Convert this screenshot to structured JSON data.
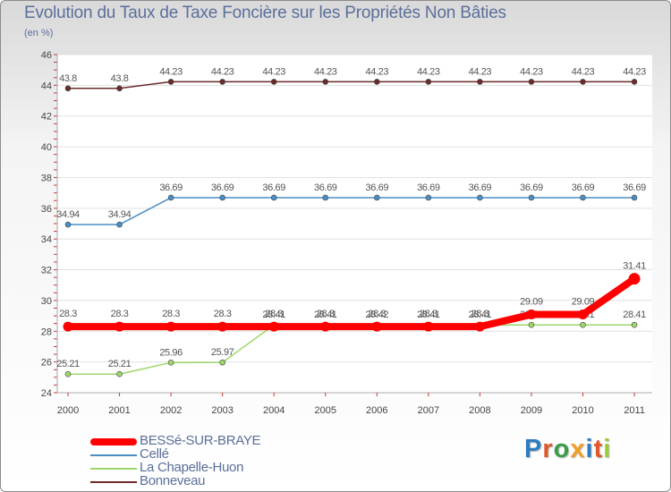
{
  "chart_data": {
    "type": "line",
    "title": "Evolution du Taux de Taxe Foncière sur les Propriétés Non Bâties",
    "unit_label": "(en %)",
    "xlabel": "",
    "ylabel": "",
    "ylim": [
      24,
      46
    ],
    "y_ticks": [
      "24",
      "26",
      "28",
      "30",
      "32",
      "34",
      "36",
      "38",
      "40",
      "42",
      "44",
      "46"
    ],
    "x": [
      "2000",
      "2001",
      "2002",
      "2003",
      "2004",
      "2005",
      "2006",
      "2007",
      "2008",
      "2009",
      "2010",
      "2011"
    ],
    "grid": "horizontal",
    "legend_position": "bottom-left",
    "series": [
      {
        "name": "Bonneveau",
        "color": "#6b2b2b",
        "values": [
          43.8,
          43.8,
          44.23,
          44.23,
          44.23,
          44.23,
          44.23,
          44.23,
          44.23,
          44.23,
          44.23,
          44.23
        ],
        "labels": [
          "43.8",
          "43.8",
          "44.23",
          "44.23",
          "44.23",
          "44.23",
          "44.23",
          "44.23",
          "44.23",
          "44.23",
          "44.23",
          "44.23"
        ]
      },
      {
        "name": "Cellé",
        "color": "#4a8ec6",
        "values": [
          34.94,
          34.94,
          36.69,
          36.69,
          36.69,
          36.69,
          36.69,
          36.69,
          36.69,
          36.69,
          36.69,
          36.69
        ],
        "labels": [
          "34.94",
          "34.94",
          "36.69",
          "36.69",
          "36.69",
          "36.69",
          "36.69",
          "36.69",
          "36.69",
          "36.69",
          "36.69",
          "36.69"
        ]
      },
      {
        "name": "La Chapelle-Huon",
        "color": "#9dd66a",
        "values": [
          25.21,
          25.21,
          25.96,
          25.97,
          28.41,
          28.41,
          28.42,
          28.41,
          28.41,
          28.41,
          28.41,
          28.41
        ],
        "labels": [
          "25.21",
          "25.21",
          "25.96",
          "25.97",
          "28.41",
          "28.41",
          "28.42",
          "28.41",
          "28.41",
          "28.41",
          "28.41",
          "28.41"
        ]
      },
      {
        "name": "BESSé-SUR-BRAYE",
        "color": "#ff0000",
        "values": [
          28.3,
          28.3,
          28.3,
          28.3,
          28.3,
          28.3,
          28.3,
          28.3,
          28.3,
          29.09,
          29.09,
          31.41
        ],
        "labels": [
          "28.3",
          "28.3",
          "28.3",
          "28.3",
          "28.3",
          "28.3",
          "28.3",
          "28.3",
          "28.3",
          "29.09",
          "29.09",
          "31.41"
        ]
      }
    ],
    "legend": [
      "BESSé-SUR-BRAYE",
      "Cellé",
      "La Chapelle-Huon",
      "Bonneveau"
    ]
  },
  "brand": {
    "text": "Proxiti",
    "colors": [
      "#2f7dc0",
      "#e0572a",
      "#3a9d4a",
      "#f0a02a",
      "#2f7dc0",
      "#e0572a",
      "#9acd32"
    ]
  }
}
